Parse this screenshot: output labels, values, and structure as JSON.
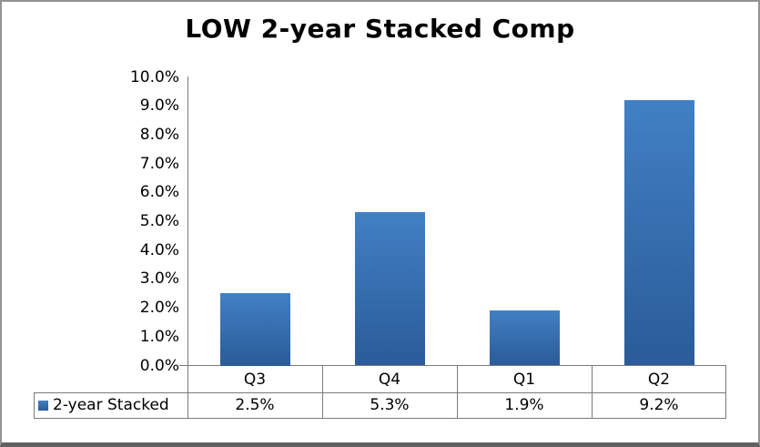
{
  "window": {
    "title": "LOW 2-year Stacked Comp"
  },
  "chart_data": {
    "type": "bar",
    "title": "LOW 2-year Stacked Comp",
    "categories": [
      "Q3",
      "Q4",
      "Q1",
      "Q2"
    ],
    "series": [
      {
        "name": "2-year Stacked",
        "values": [
          2.5,
          5.3,
          1.9,
          9.2
        ]
      }
    ],
    "value_labels": [
      "2.5%",
      "5.3%",
      "1.9%",
      "9.2%"
    ],
    "y_ticks": [
      "10.0%",
      "9.0%",
      "8.0%",
      "7.0%",
      "6.0%",
      "5.0%",
      "4.0%",
      "3.0%",
      "2.0%",
      "1.0%",
      "0.0%"
    ],
    "ylim": [
      0,
      10
    ],
    "y_tick_step": 1.0,
    "xlabel": "",
    "ylabel": "",
    "grid": false,
    "legend_position": "data-table-left",
    "data_table_shown": true,
    "colors": {
      "bar_top": "#4180C4",
      "bar_bottom": "#2B5B99",
      "axis_line": "#7a7a7a",
      "table_border": "#7a7a7a",
      "text": "#000000",
      "frame_border": "#939393",
      "frame_bottom": "#606060",
      "background": "#FFFFFF"
    }
  }
}
